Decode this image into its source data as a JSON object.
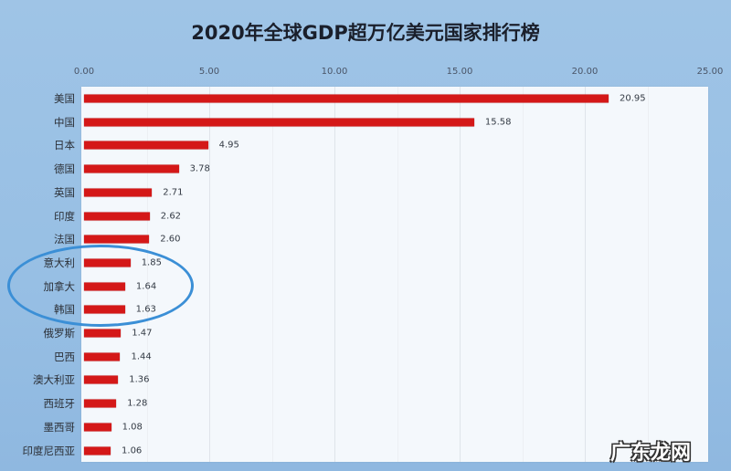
{
  "chart_data": {
    "type": "bar",
    "orientation": "horizontal",
    "title": "2020年全球GDP超万亿美元国家排行榜",
    "xlabel": "",
    "ylabel": "",
    "xlim": [
      0,
      25
    ],
    "x_ticks": [
      "0.00",
      "5.00",
      "10.00",
      "15.00",
      "20.00",
      "25.00"
    ],
    "grid": true,
    "legend": null,
    "categories": [
      "美国",
      "中国",
      "日本",
      "德国",
      "英国",
      "印度",
      "法国",
      "意大利",
      "加拿大",
      "韩国",
      "俄罗斯",
      "巴西",
      "澳大利亚",
      "西班牙",
      "墨西哥",
      "印度尼西亚"
    ],
    "values": [
      20.95,
      15.58,
      4.95,
      3.78,
      2.71,
      2.62,
      2.6,
      1.85,
      1.64,
      1.63,
      1.47,
      1.44,
      1.36,
      1.28,
      1.08,
      1.06
    ],
    "value_labels": [
      "20.95",
      "15.58",
      "4.95",
      "3.78",
      "2.71",
      "2.62",
      "2.60",
      "1.85",
      "1.64",
      "1.63",
      "1.47",
      "1.44",
      "1.36",
      "1.28",
      "1.08",
      "1.06"
    ],
    "bar_color": "#d41818",
    "annotations": [
      {
        "type": "ellipse",
        "color": "#3b8fd6",
        "highlights": [
          "意大利",
          "加拿大",
          "韩国"
        ]
      }
    ]
  },
  "watermark": "广东龙网"
}
